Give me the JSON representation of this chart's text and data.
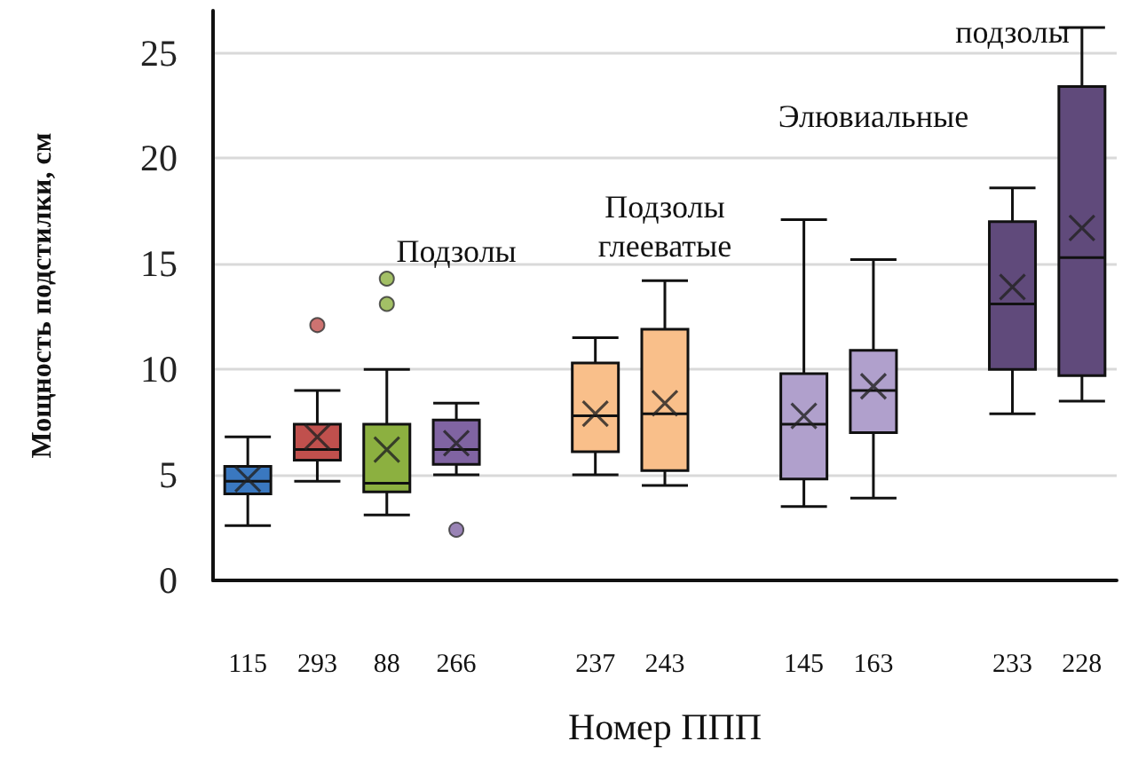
{
  "chart_data": {
    "type": "box",
    "xlabel": "Номер ППП",
    "ylabel": "Мощность подстилки, см",
    "categories": [
      "115",
      "293",
      "88",
      "266",
      null,
      "237",
      "243",
      null,
      "145",
      "163",
      null,
      "233",
      "228"
    ],
    "colors": [
      "#3a78c0",
      "#c0504d",
      "#8cb040",
      "#8064a2",
      null,
      "#f9bf8a",
      "#f9bf8a",
      null,
      "#b0a0cc",
      "#b0a0cc",
      null,
      "#604a7b",
      "#604a7b"
    ],
    "boxes": [
      {
        "low": 2.6,
        "q1": 4.1,
        "median": 4.7,
        "q3": 5.4,
        "high": 6.8,
        "mean": 4.8
      },
      {
        "low": 4.7,
        "q1": 5.7,
        "median": 6.2,
        "q3": 7.4,
        "high": 9.0,
        "mean": 6.8,
        "outliers": [
          12.1
        ]
      },
      {
        "low": 3.1,
        "q1": 4.2,
        "median": 4.6,
        "q3": 7.4,
        "high": 10.0,
        "mean": 6.2,
        "outliers": [
          13.1,
          14.3
        ]
      },
      {
        "low": 5.0,
        "q1": 5.5,
        "median": 6.2,
        "q3": 7.6,
        "high": 8.4,
        "mean": 6.5,
        "outliers": [
          2.4
        ]
      },
      null,
      {
        "low": 5.0,
        "q1": 6.1,
        "median": 7.8,
        "q3": 10.3,
        "high": 11.5,
        "mean": 7.9
      },
      {
        "low": 4.5,
        "q1": 5.2,
        "median": 7.9,
        "q3": 11.9,
        "high": 14.2,
        "mean": 8.4
      },
      null,
      {
        "low": 3.5,
        "q1": 4.8,
        "median": 7.4,
        "q3": 9.8,
        "high": 17.1,
        "mean": 7.8
      },
      {
        "low": 3.9,
        "q1": 7.0,
        "median": 9.0,
        "q3": 10.9,
        "high": 15.2,
        "mean": 9.2
      },
      null,
      {
        "low": 7.9,
        "q1": 10.0,
        "median": 13.1,
        "q3": 17.0,
        "high": 18.6,
        "mean": 13.9
      },
      {
        "low": 8.5,
        "q1": 9.7,
        "median": 15.3,
        "q3": 23.4,
        "high": 26.2,
        "mean": 16.7
      }
    ],
    "annotations": [
      "Подзолы",
      "Подзолы\nглееватые",
      "Элювиальные",
      "подзолы"
    ],
    "ylim": [
      0,
      27
    ],
    "yticks": [
      0,
      5,
      10,
      15,
      20,
      25
    ],
    "grid": "y"
  }
}
